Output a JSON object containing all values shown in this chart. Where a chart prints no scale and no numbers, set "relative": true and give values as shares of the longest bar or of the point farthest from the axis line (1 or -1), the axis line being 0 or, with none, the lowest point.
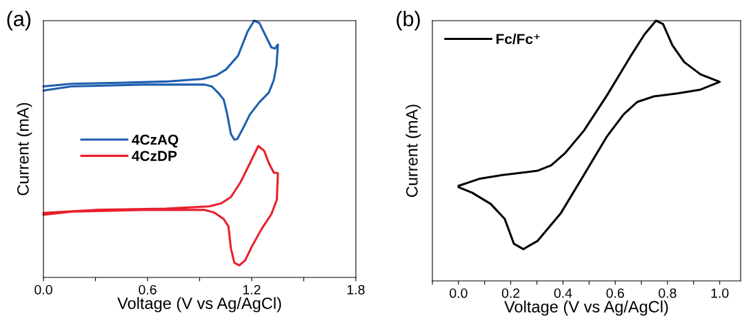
{
  "chart_data": [
    {
      "type": "line",
      "title": "(a)",
      "xlabel": "Voltage (V vs Ag/AgCl)",
      "ylabel": "Current (mA)",
      "relative": true,
      "tick_labels": "x",
      "legend": "center left",
      "grid": false,
      "marker": "none",
      "line_style": "solid",
      "xlim": [
        0,
        1.8
      ],
      "xticks": [
        {
          "value": 0,
          "label": "0.0"
        },
        {
          "value": 0.3,
          "label": null
        },
        0.6,
        {
          "value": 0.9,
          "label": null
        },
        1.2,
        {
          "value": 1.5,
          "label": null
        },
        1.8
      ],
      "series": [
        {
          "name": "4CzAQ",
          "color": "#1f5fae",
          "x": [
            0.0,
            0.161,
            0.435,
            0.709,
            0.915,
            0.997,
            1.052,
            1.121,
            1.176,
            1.214,
            1.244,
            1.279,
            1.313,
            1.334,
            1.351,
            1.343,
            1.327,
            1.299,
            1.244,
            1.19,
            1.148,
            1.118,
            1.1,
            1.08,
            1.059,
            1.039,
            1.011,
            0.97,
            0.929,
            0.572,
            0.161,
            0.0
          ],
          "values": [
            0.744,
            0.754,
            0.758,
            0.763,
            0.773,
            0.787,
            0.81,
            0.863,
            0.957,
            1.0,
            0.991,
            0.943,
            0.896,
            0.891,
            0.907,
            0.825,
            0.768,
            0.72,
            0.682,
            0.635,
            0.578,
            0.54,
            0.536,
            0.559,
            0.635,
            0.692,
            0.716,
            0.744,
            0.751,
            0.751,
            0.744,
            0.728
          ]
        },
        {
          "name": "4CzDP",
          "color": "#e8202e",
          "x": [
            0.0,
            0.298,
            0.709,
            0.956,
            1.025,
            1.08,
            1.135,
            1.19,
            1.238,
            1.272,
            1.299,
            1.327,
            1.351,
            1.345,
            1.313,
            1.258,
            1.203,
            1.162,
            1.128,
            1.1,
            1.08,
            1.066,
            1.039,
            0.984,
            0.929,
            0.572,
            0.161,
            0.0
          ],
          "values": [
            0.251,
            0.263,
            0.268,
            0.277,
            0.289,
            0.313,
            0.37,
            0.445,
            0.512,
            0.493,
            0.445,
            0.408,
            0.406,
            0.303,
            0.246,
            0.19,
            0.123,
            0.066,
            0.047,
            0.057,
            0.114,
            0.199,
            0.227,
            0.253,
            0.263,
            0.263,
            0.256,
            0.244
          ]
        }
      ]
    },
    {
      "type": "line",
      "title": "(b)",
      "xlabel": "Voltage (V vs Ag/AgCl)",
      "ylabel": "Current (mA)",
      "relative": true,
      "tick_labels": "x",
      "legend": "top left",
      "grid": false,
      "marker": "none",
      "line_style": "solid",
      "xlim": [
        -0.1,
        1.08
      ],
      "xticks": [
        {
          "value": -0.1,
          "label": null
        },
        {
          "value": 0,
          "label": "0.0"
        },
        {
          "value": 0.1,
          "label": null
        },
        0.2,
        {
          "value": 0.3,
          "label": null
        },
        0.4,
        {
          "value": 0.5,
          "label": null
        },
        0.6,
        {
          "value": 0.7,
          "label": null
        },
        0.8,
        {
          "value": 0.9,
          "label": null
        },
        {
          "value": 1.0,
          "label": "1.0"
        }
      ],
      "series": [
        {
          "name": "Fc/Fc⁺",
          "color": "#000000",
          "x": [
            0.0,
            0.079,
            0.168,
            0.302,
            0.355,
            0.409,
            0.48,
            0.569,
            0.658,
            0.712,
            0.756,
            0.783,
            0.819,
            0.864,
            0.926,
            1.0,
            0.926,
            0.837,
            0.748,
            0.685,
            0.632,
            0.569,
            0.48,
            0.391,
            0.302,
            0.248,
            0.212,
            0.177,
            0.123,
            0.052,
            0.0
          ],
          "values": [
            0.365,
            0.392,
            0.407,
            0.423,
            0.444,
            0.492,
            0.577,
            0.714,
            0.862,
            0.947,
            1.0,
            0.987,
            0.905,
            0.841,
            0.794,
            0.765,
            0.735,
            0.72,
            0.709,
            0.688,
            0.64,
            0.556,
            0.407,
            0.259,
            0.153,
            0.122,
            0.143,
            0.238,
            0.296,
            0.339,
            0.36
          ]
        }
      ]
    }
  ]
}
